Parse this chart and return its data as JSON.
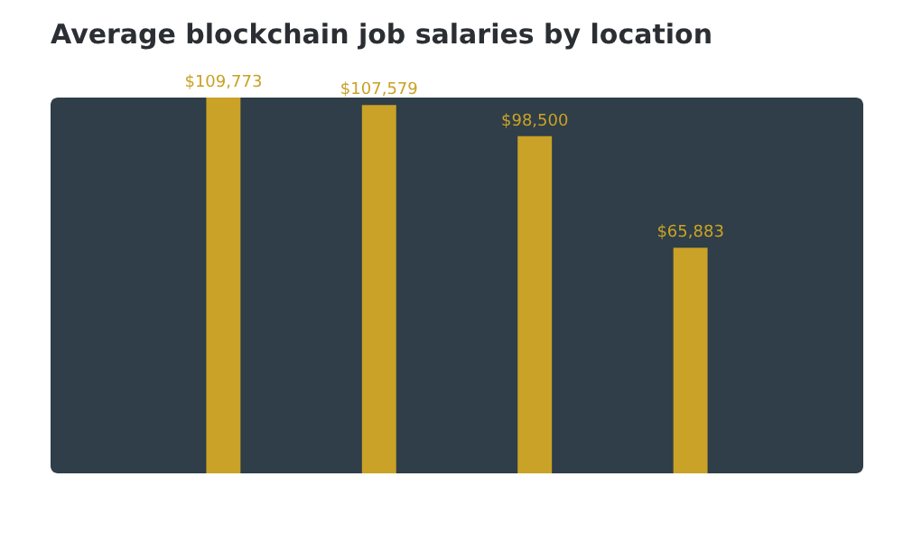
{
  "chart_data": {
    "type": "bar",
    "title": "Average blockchain job salaries by location",
    "categories": [
      null,
      null,
      null,
      null
    ],
    "values": [
      109773,
      107579,
      98500,
      65883
    ],
    "value_labels": [
      "$109,773",
      "$107,579",
      "$98,500",
      "$65,883"
    ],
    "color": "#c9a227"
  }
}
